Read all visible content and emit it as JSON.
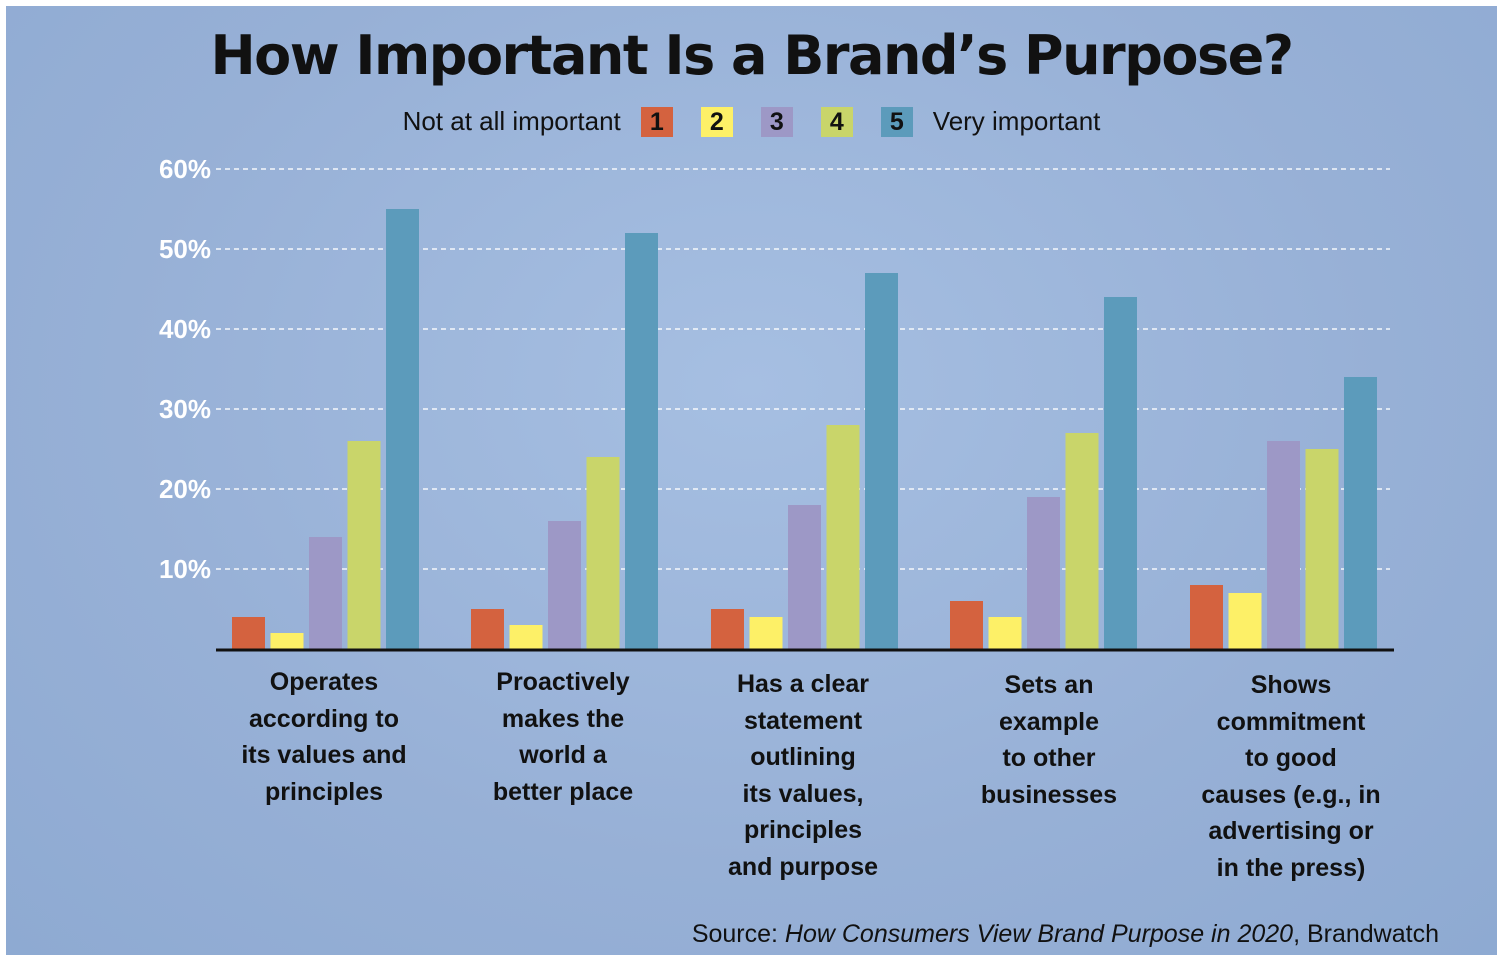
{
  "chart_data": {
    "type": "bar",
    "title": "How Important Is a Brand’s Purpose?",
    "legend": {
      "low_label": "Not at all important",
      "high_label": "Very important"
    },
    "series": [
      {
        "name": "1",
        "color": "#d4623f",
        "values": [
          4,
          5,
          5,
          6,
          8
        ]
      },
      {
        "name": "2",
        "color": "#fdf067",
        "values": [
          2,
          3,
          4,
          4,
          7
        ]
      },
      {
        "name": "3",
        "color": "#9d98c6",
        "values": [
          14,
          16,
          18,
          19,
          26
        ]
      },
      {
        "name": "4",
        "color": "#c9d56a",
        "values": [
          26,
          24,
          28,
          27,
          25
        ]
      },
      {
        "name": "5",
        "color": "#5c9bbb",
        "values": [
          55,
          52,
          47,
          44,
          34
        ]
      }
    ],
    "categories": [
      "Operates\naccording to\nits values and\nprinciples",
      "Proactively\nmakes the\nworld a\nbetter place",
      "Has a clear\nstatement\noutlining\nits values,\nprinciples\nand purpose",
      "Sets an\nexample\nto other\nbusinesses",
      "Shows\ncommitment\nto good\ncauses (e.g., in\nadvertising or\nin the press)"
    ],
    "yticks": [
      "10%",
      "20%",
      "30%",
      "40%",
      "50%",
      "60%"
    ],
    "ylim": [
      0,
      60
    ],
    "grid": true,
    "source": {
      "prefix": "Source: ",
      "title": "How Consumers View Brand Purpose in 2020",
      "suffix": ", Brandwatch"
    }
  }
}
